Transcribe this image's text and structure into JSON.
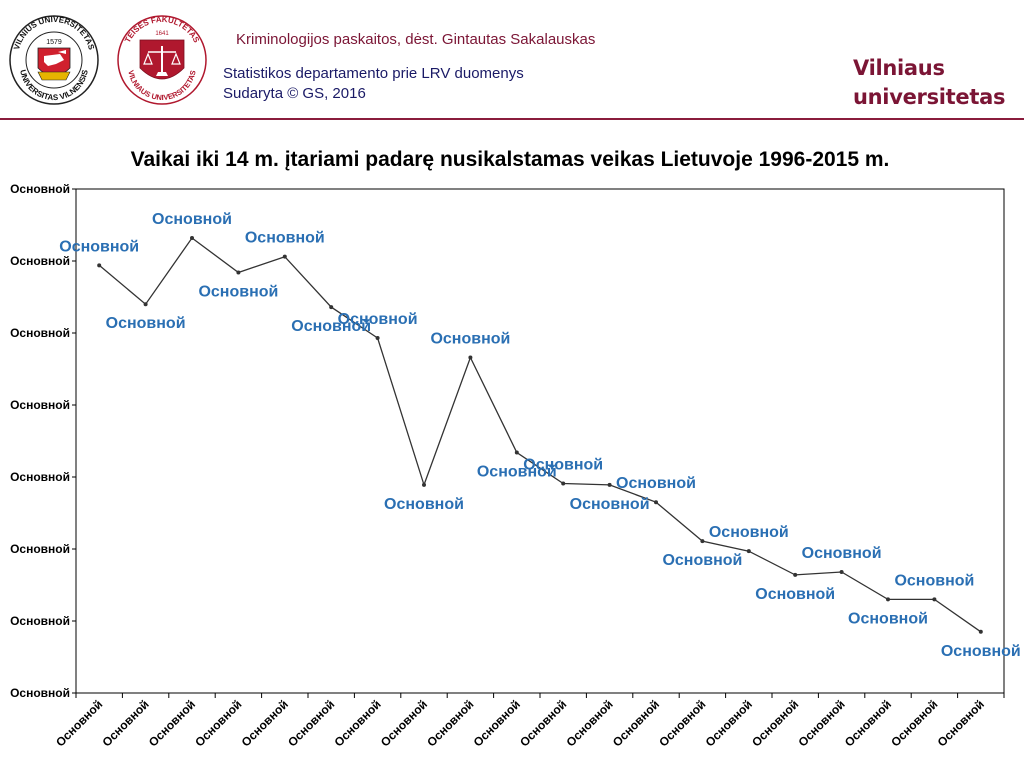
{
  "header": {
    "course_line": "Kriminologijos paskaitos, dėst. Gintautas Sakalauskas",
    "source_line": "Statistikos departamento prie LRV duomenys",
    "created_line": "Sudaryta © GS, 2016",
    "brand_line1": "Vilniaus",
    "brand_line2": "universitetas",
    "colors": {
      "course": "#7b1535",
      "source": "#1a1a66",
      "brand": "#7b1535",
      "rule": "#8a1c3c"
    }
  },
  "logos": [
    {
      "icon": "vilnius-university-seal-icon",
      "text_top": "VILNIUS UNIVERSITETAS",
      "text_bottom": "UNIVERSITAS VILNENSIS",
      "year": "1579"
    },
    {
      "icon": "law-faculty-seal-icon",
      "text_top": "TEISĖS FAKULTETAS",
      "text_bottom": "VILNIAUS UNIVERSITETAS",
      "year": "1641"
    }
  ],
  "chart_data": {
    "type": "line",
    "title": "Vaikai iki 14 m. įtariami padarę nusikalstamas veikas Lietuvoje 1996-2015 m.",
    "y_tick_labels": [
      "Основной",
      "Основной",
      "Основной",
      "Основной",
      "Основной",
      "Основной",
      "Основной",
      "Основной"
    ],
    "x_tick_labels": [
      "Основной",
      "Основной",
      "Основной",
      "Основной",
      "Основной",
      "Основной",
      "Основной",
      "Основной",
      "Основной",
      "Основной",
      "Основной",
      "Основной",
      "Основной",
      "Основной",
      "Основной",
      "Основной",
      "Основной",
      "Основной",
      "Основной",
      "Основной"
    ],
    "data_labels": [
      "Основной",
      "Основной",
      "Основной",
      "Основной",
      "Основной",
      "Основной",
      "Основной",
      "Основной",
      "Основной",
      "Основной",
      "Основной",
      "Основной",
      "Основной",
      "Основной",
      "Основной",
      "Основной",
      "Основной",
      "Основной",
      "Основной",
      "Основной"
    ],
    "ylim": [
      0,
      7
    ],
    "values": [
      5.94,
      5.4,
      6.32,
      5.84,
      6.06,
      5.36,
      4.93,
      2.89,
      4.66,
      3.34,
      2.91,
      2.89,
      2.65,
      2.11,
      1.97,
      1.64,
      1.68,
      1.3,
      1.3,
      0.85
    ],
    "grid": false,
    "legend": "none",
    "line_color": "#333333",
    "label_color": "#2a6fb3"
  }
}
